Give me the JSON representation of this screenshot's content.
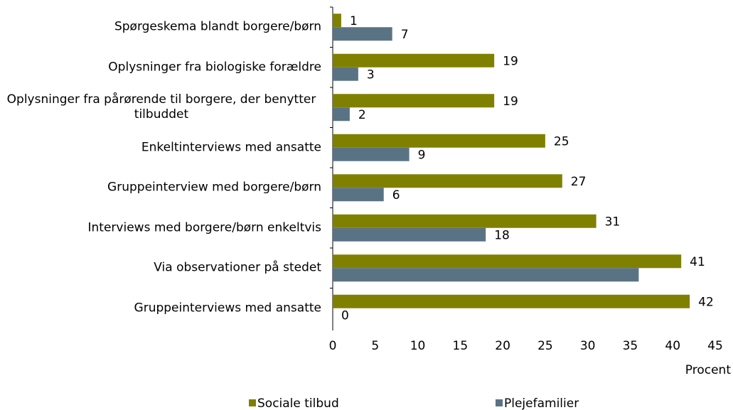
{
  "chart_data": {
    "type": "hbar",
    "categories": [
      "Spørgeskema blandt borgere/børn",
      "Oplysninger fra biologiske forældre",
      "Oplysninger fra pårørende til borgere, der benytter tilbuddet",
      "Enkeltinterviews med ansatte",
      "Gruppeinterview med borgere/børn",
      "Interviews med borgere/børn enkeltvis",
      "Via observationer på stedet",
      "Gruppeinterviews med ansatte"
    ],
    "series": [
      {
        "name": "Sociale tilbud",
        "color": "#808000",
        "values": [
          1,
          19,
          19,
          25,
          27,
          31,
          41,
          42
        ]
      },
      {
        "name": "Plejefamilier",
        "color": "#5a7384",
        "values": [
          7,
          3,
          2,
          9,
          6,
          18,
          36,
          0
        ],
        "value_labels": [
          "7",
          "3",
          "2",
          "9",
          "6",
          "18",
          null,
          "0"
        ]
      }
    ],
    "xlim": [
      0,
      45
    ],
    "xticks": [
      0,
      5,
      10,
      15,
      20,
      25,
      30,
      35,
      40,
      45
    ],
    "xlabel": "Procent"
  }
}
